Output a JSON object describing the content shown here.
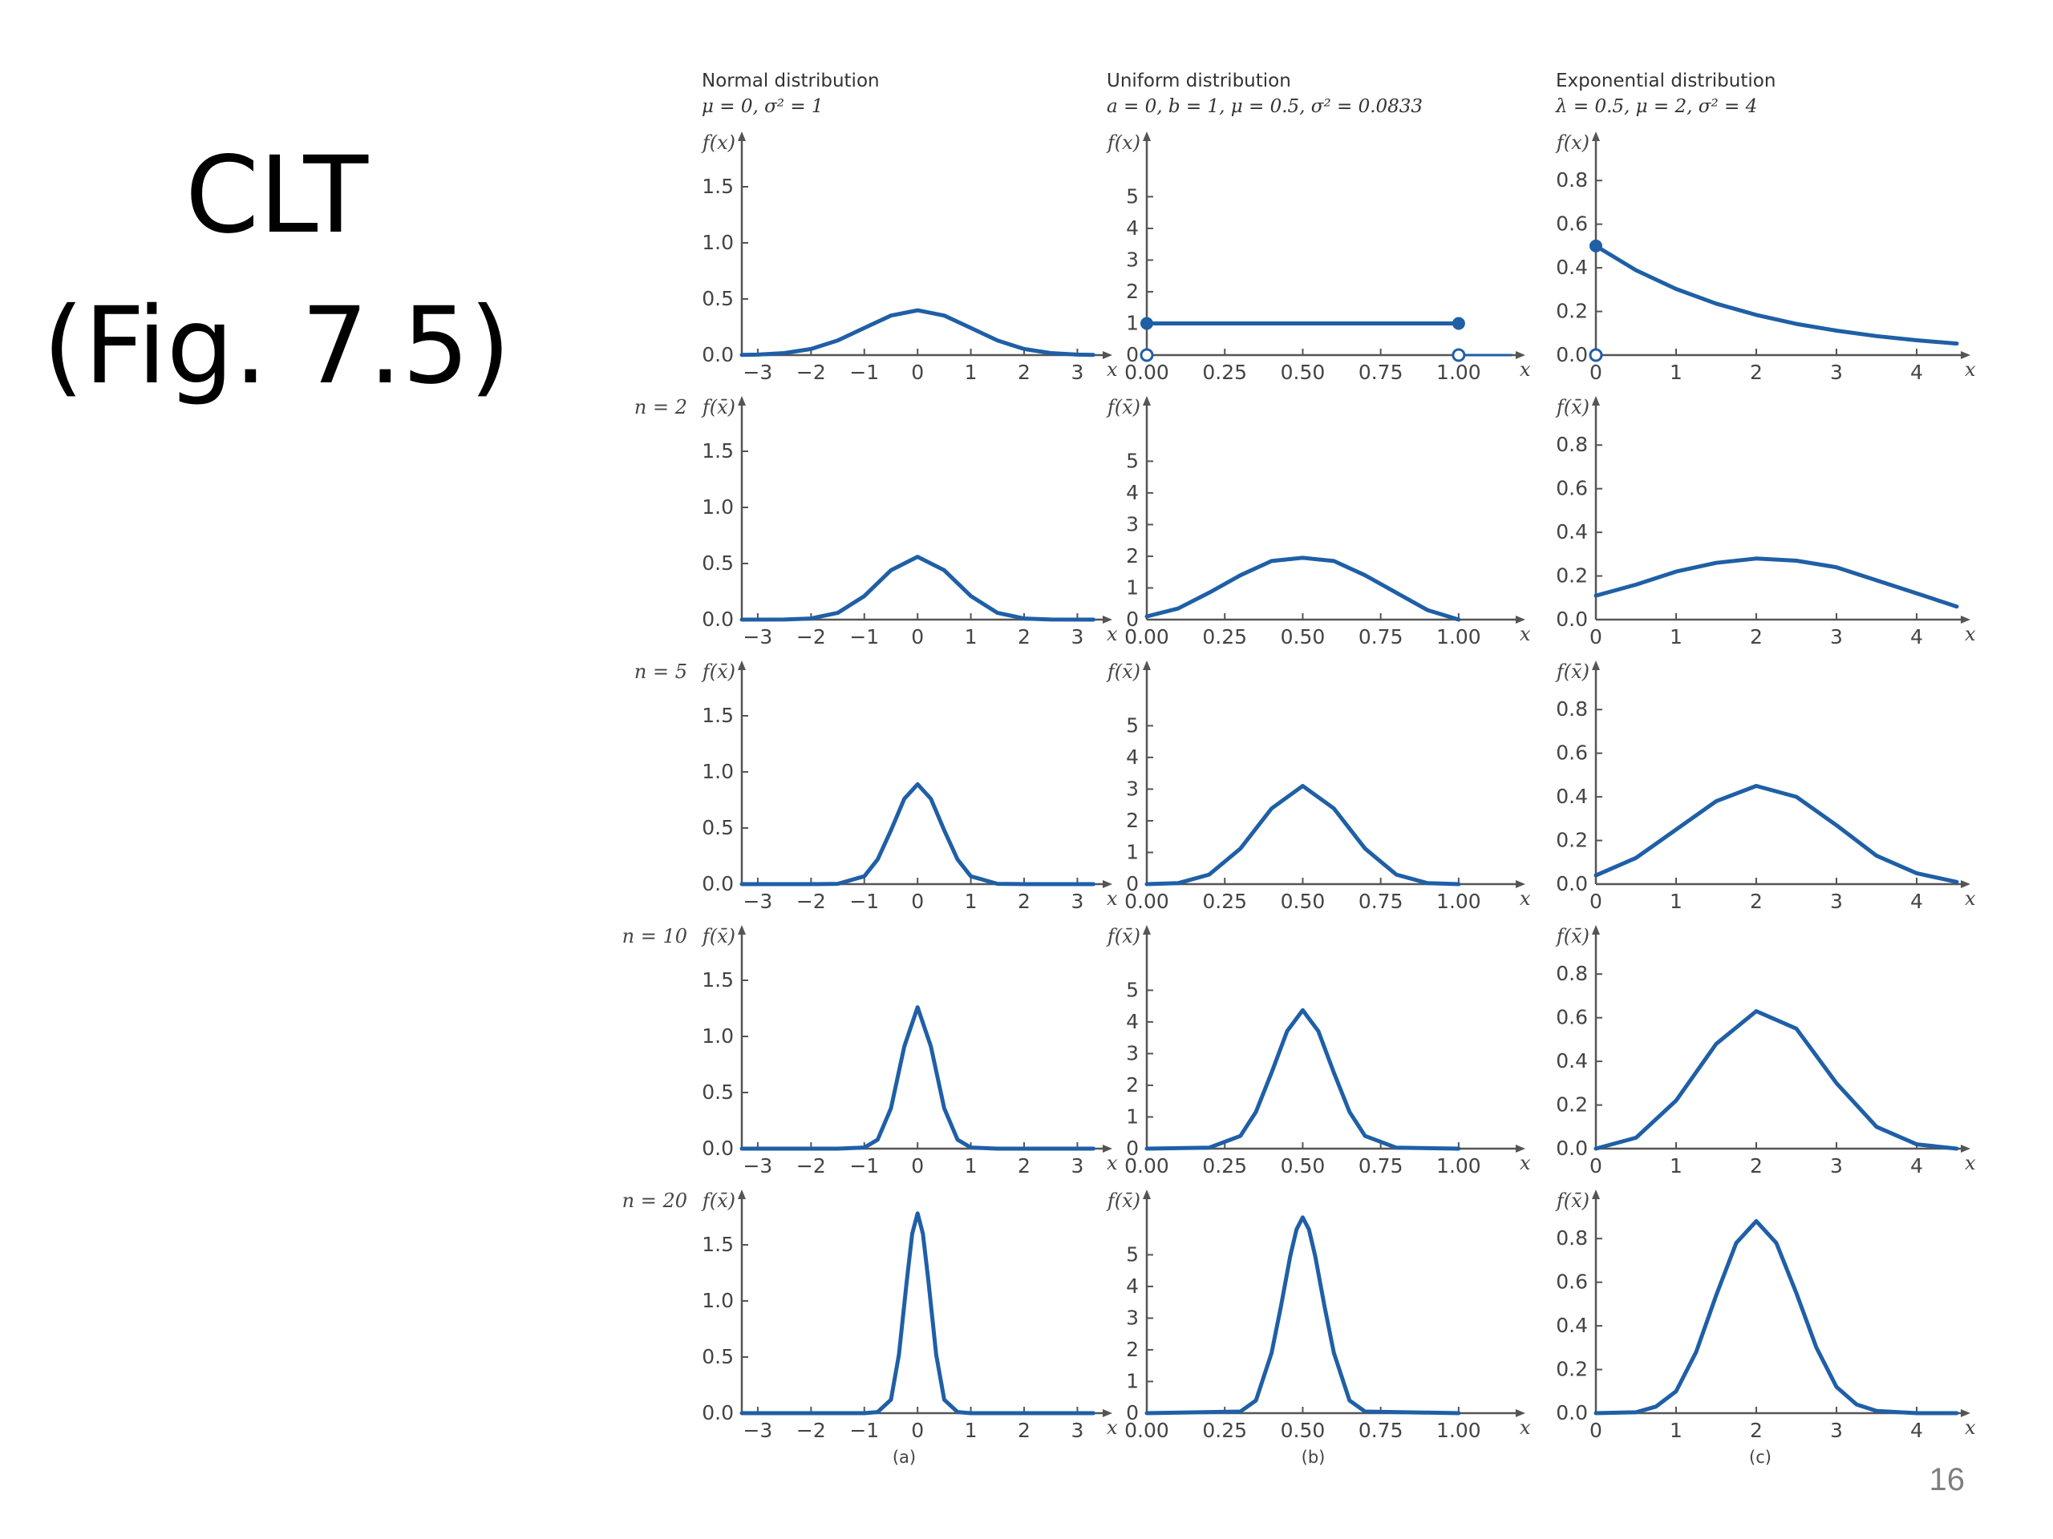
{
  "slide": {
    "title_line1": "CLT",
    "title_line2": "(Fig. 7.5)",
    "page_number": "16"
  },
  "colors": {
    "curve": "#1f5fa6",
    "axis": "#555555",
    "text": "#444444"
  },
  "chart_data": [
    {
      "type": "line",
      "column": "a",
      "sublabel": "(a)",
      "title": "Normal distribution",
      "subtitle": "μ = 0, σ² = 1",
      "xlim": [
        -3.3,
        3.4
      ],
      "ylim": [
        0,
        1.75
      ],
      "xticks": [
        -3,
        -2,
        -1,
        0,
        1,
        2,
        3
      ],
      "xtick_labels": [
        "−3",
        "−2",
        "−1",
        "0",
        "1",
        "2",
        "3"
      ],
      "yticks": [
        0,
        0.5,
        1.0,
        1.5
      ],
      "ytick_labels": [
        "0.0",
        "0.5",
        "1.0",
        "1.5"
      ],
      "x_axis_label": "x",
      "panels": [
        {
          "row_label": "",
          "ylabel": "f(x)",
          "x": [
            -3.3,
            -3,
            -2.5,
            -2,
            -1.5,
            -1,
            -0.5,
            0,
            0.5,
            1,
            1.5,
            2,
            2.5,
            3,
            3.3
          ],
          "y": [
            0.002,
            0.004,
            0.018,
            0.054,
            0.13,
            0.242,
            0.352,
            0.399,
            0.352,
            0.242,
            0.13,
            0.054,
            0.018,
            0.004,
            0.002
          ]
        },
        {
          "row_label": "n = 2",
          "ylabel": "f(x̄)",
          "x": [
            -3.3,
            -2.5,
            -2,
            -1.5,
            -1,
            -0.5,
            0,
            0.5,
            1,
            1.5,
            2,
            2.5,
            3.3
          ],
          "y": [
            0.0,
            0.001,
            0.01,
            0.06,
            0.21,
            0.44,
            0.56,
            0.44,
            0.21,
            0.06,
            0.01,
            0.001,
            0.0
          ]
        },
        {
          "row_label": "n = 5",
          "ylabel": "f(x̄)",
          "x": [
            -3.3,
            -2,
            -1.5,
            -1,
            -0.75,
            -0.5,
            -0.25,
            0,
            0.25,
            0.5,
            0.75,
            1,
            1.5,
            2,
            3.3
          ],
          "y": [
            0.0,
            0.0,
            0.003,
            0.07,
            0.22,
            0.48,
            0.76,
            0.89,
            0.76,
            0.48,
            0.22,
            0.07,
            0.003,
            0.0,
            0.0
          ]
        },
        {
          "row_label": "n = 10",
          "ylabel": "f(x̄)",
          "x": [
            -3.3,
            -1.5,
            -1,
            -0.75,
            -0.5,
            -0.25,
            0,
            0.25,
            0.5,
            0.75,
            1,
            1.5,
            3.3
          ],
          "y": [
            0.0,
            0.0,
            0.01,
            0.08,
            0.36,
            0.91,
            1.26,
            0.91,
            0.36,
            0.08,
            0.01,
            0.0,
            0.0
          ]
        },
        {
          "row_label": "n = 20",
          "ylabel": "f(x̄)",
          "x": [
            -3.3,
            -1,
            -0.75,
            -0.5,
            -0.35,
            -0.2,
            -0.1,
            0,
            0.1,
            0.2,
            0.35,
            0.5,
            0.75,
            1,
            3.3
          ],
          "y": [
            0.0,
            0.0,
            0.01,
            0.12,
            0.52,
            1.19,
            1.6,
            1.78,
            1.6,
            1.19,
            0.52,
            0.12,
            0.01,
            0.0,
            0.0
          ]
        }
      ]
    },
    {
      "type": "line",
      "column": "b",
      "sublabel": "(b)",
      "title": "Uniform distribution",
      "subtitle": "a = 0, b = 1, μ = 0.5, σ² = 0.0833",
      "xlim": [
        0,
        1.17
      ],
      "ylim": [
        0,
        6.2
      ],
      "xticks": [
        0,
        0.25,
        0.5,
        0.75,
        1.0
      ],
      "xtick_labels": [
        "0.00",
        "0.25",
        "0.50",
        "0.75",
        "1.00"
      ],
      "yticks": [
        0,
        1,
        2,
        3,
        4,
        5
      ],
      "ytick_labels": [
        "0",
        "1",
        "2",
        "3",
        "4",
        "5"
      ],
      "x_axis_label": "x",
      "panels": [
        {
          "row_label": "",
          "ylabel": "f(x)",
          "x": [
            0,
            1
          ],
          "y": [
            1,
            1
          ],
          "step": true,
          "filled_points": [
            [
              0,
              1
            ],
            [
              1,
              1
            ]
          ],
          "open_points": [
            [
              0,
              0
            ],
            [
              1,
              0
            ]
          ]
        },
        {
          "row_label": "n = 2",
          "ylabel": "f(x̄)",
          "x": [
            0,
            0.1,
            0.2,
            0.3,
            0.4,
            0.5,
            0.6,
            0.7,
            0.8,
            0.9,
            1.0
          ],
          "y": [
            0.1,
            0.35,
            0.85,
            1.4,
            1.85,
            1.95,
            1.85,
            1.4,
            0.85,
            0.3,
            0.0
          ]
        },
        {
          "row_label": "n = 5",
          "ylabel": "f(x̄)",
          "x": [
            0,
            0.1,
            0.2,
            0.3,
            0.4,
            0.5,
            0.6,
            0.7,
            0.8,
            0.9,
            1.0
          ],
          "y": [
            0.0,
            0.03,
            0.3,
            1.12,
            2.39,
            3.1,
            2.39,
            1.12,
            0.3,
            0.03,
            0.0
          ]
        },
        {
          "row_label": "n = 10",
          "ylabel": "f(x̄)",
          "x": [
            0,
            0.2,
            0.3,
            0.35,
            0.4,
            0.45,
            0.5,
            0.55,
            0.6,
            0.65,
            0.7,
            0.8,
            1.0
          ],
          "y": [
            0.0,
            0.03,
            0.4,
            1.16,
            2.4,
            3.71,
            4.37,
            3.71,
            2.4,
            1.16,
            0.4,
            0.03,
            0.0
          ]
        },
        {
          "row_label": "n = 20",
          "ylabel": "f(x̄)",
          "x": [
            0,
            0.3,
            0.35,
            0.4,
            0.43,
            0.46,
            0.48,
            0.5,
            0.52,
            0.54,
            0.57,
            0.6,
            0.65,
            0.7,
            1.0
          ],
          "y": [
            0.0,
            0.05,
            0.4,
            1.9,
            3.36,
            4.96,
            5.8,
            6.18,
            5.8,
            4.96,
            3.36,
            1.9,
            0.4,
            0.05,
            0.0
          ]
        }
      ]
    },
    {
      "type": "line",
      "column": "c",
      "sublabel": "(c)",
      "title": "Exponential distribution",
      "subtitle": "λ = 0.5, μ = 2, σ² = 4",
      "xlim": [
        0,
        4.5
      ],
      "ylim": [
        0,
        0.9
      ],
      "xticks": [
        0,
        1,
        2,
        3,
        4
      ],
      "xtick_labels": [
        "0",
        "1",
        "2",
        "3",
        "4"
      ],
      "yticks": [
        0,
        0.2,
        0.4,
        0.6,
        0.8
      ],
      "ytick_labels": [
        "0.0",
        "0.2",
        "0.4",
        "0.6",
        "0.8"
      ],
      "x_axis_label": "x",
      "panels": [
        {
          "row_label": "",
          "ylabel": "f(x)",
          "x": [
            0,
            0.5,
            1,
            1.5,
            2,
            2.5,
            3,
            3.5,
            4,
            4.5
          ],
          "y": [
            0.5,
            0.389,
            0.303,
            0.236,
            0.184,
            0.143,
            0.112,
            0.087,
            0.068,
            0.053
          ],
          "filled_points": [
            [
              0,
              0.5
            ]
          ],
          "open_points": [
            [
              0,
              0
            ]
          ]
        },
        {
          "row_label": "n = 2",
          "ylabel": "f(x̄)",
          "x": [
            0,
            0.5,
            1,
            1.5,
            2,
            2.5,
            3,
            3.5,
            4,
            4.5
          ],
          "y": [
            0.11,
            0.16,
            0.22,
            0.26,
            0.28,
            0.27,
            0.24,
            0.18,
            0.12,
            0.06
          ]
        },
        {
          "row_label": "n = 5",
          "ylabel": "f(x̄)",
          "x": [
            0,
            0.5,
            1,
            1.5,
            2,
            2.5,
            3,
            3.5,
            4,
            4.5
          ],
          "y": [
            0.04,
            0.12,
            0.25,
            0.38,
            0.45,
            0.4,
            0.27,
            0.13,
            0.05,
            0.01
          ]
        },
        {
          "row_label": "n = 10",
          "ylabel": "f(x̄)",
          "x": [
            0,
            0.5,
            1,
            1.5,
            2,
            2.5,
            3,
            3.5,
            4,
            4.5
          ],
          "y": [
            0.0,
            0.05,
            0.22,
            0.48,
            0.63,
            0.55,
            0.3,
            0.1,
            0.02,
            0.0
          ]
        },
        {
          "row_label": "n = 20",
          "ylabel": "f(x̄)",
          "x": [
            0,
            0.5,
            0.75,
            1,
            1.25,
            1.5,
            1.75,
            2,
            2.25,
            2.5,
            2.75,
            3,
            3.25,
            3.5,
            4,
            4.5
          ],
          "y": [
            0.0,
            0.004,
            0.03,
            0.1,
            0.28,
            0.54,
            0.78,
            0.88,
            0.78,
            0.55,
            0.3,
            0.12,
            0.04,
            0.01,
            0.0,
            0.0
          ]
        }
      ]
    }
  ]
}
